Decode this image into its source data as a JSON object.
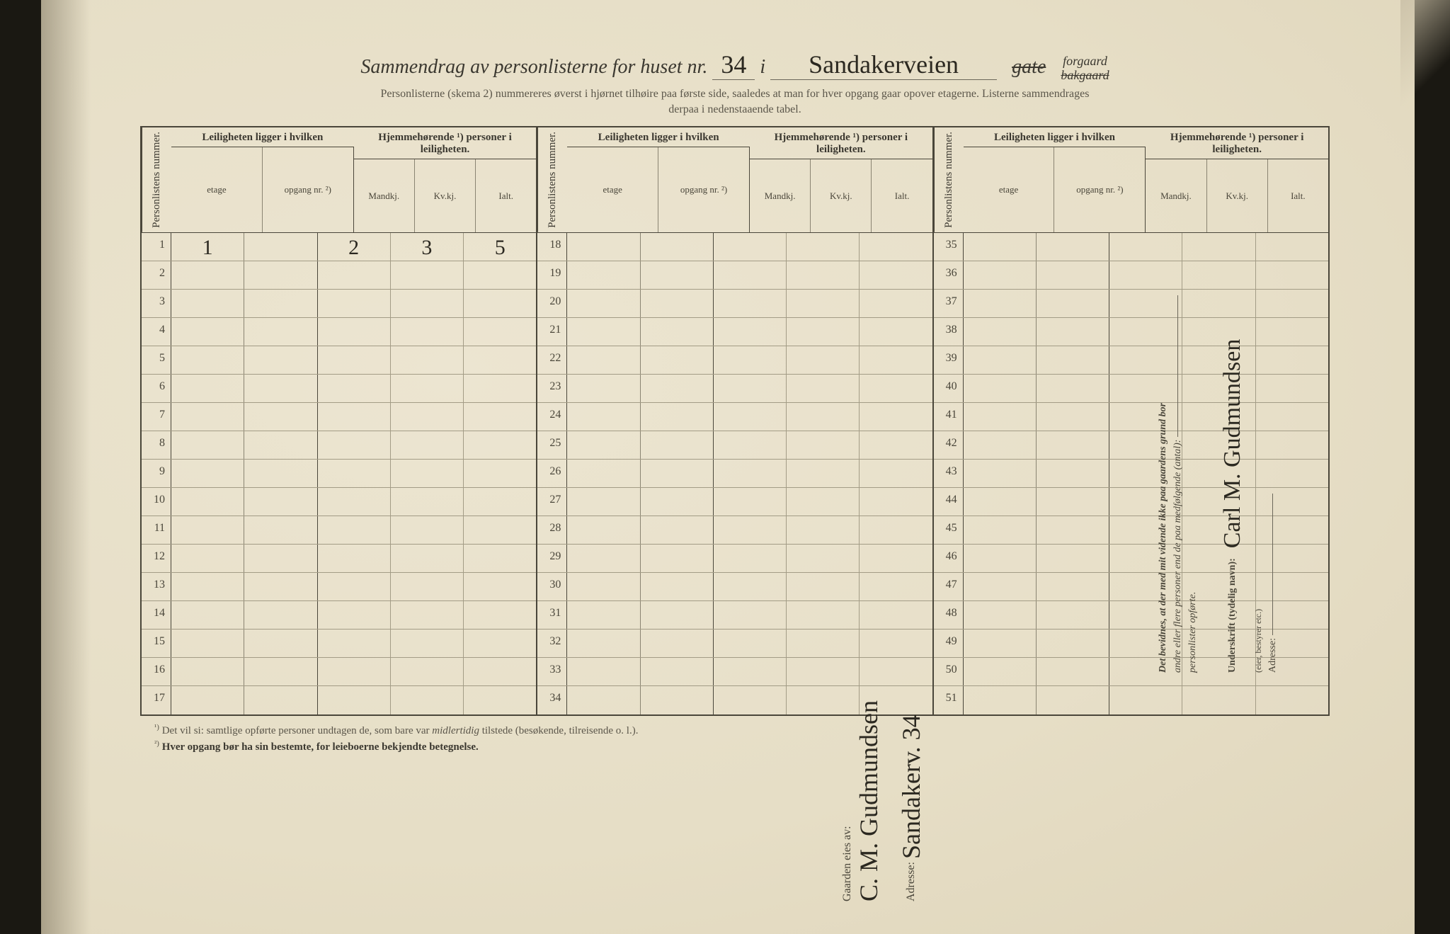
{
  "title": {
    "prefix": "Sammendrag av personlisterne for huset nr.",
    "house_nr": "34",
    "in": "i",
    "street": "Sandakerveien",
    "gate": "gate",
    "forgaard": "forgaard",
    "bakgaard": "bakgaard"
  },
  "subhead": {
    "line1": "Personlisterne (skema 2) nummereres øverst i hjørnet tilhøire paa første side, saaledes at man for hver opgang gaar opover etagerne.  Listerne sammendrages",
    "line2": "derpaa i nedenstaaende tabel."
  },
  "headers": {
    "personlistens_nummer": "Personlistens nummer.",
    "leiligheten": "Leiligheten ligger i hvilken",
    "etage": "etage",
    "opgang": "opgang nr. ²)",
    "hjemmehorende": "Hjemmehørende ¹) personer i leiligheten.",
    "mandkj": "Mandkj.",
    "kvkj": "Kv.kj.",
    "ialt": "Ialt."
  },
  "blocks": [
    {
      "rows": [
        {
          "n": "1",
          "etage": "1",
          "opgang": "",
          "m": "2",
          "k": "3",
          "i": "5"
        },
        {
          "n": "2"
        },
        {
          "n": "3"
        },
        {
          "n": "4"
        },
        {
          "n": "5"
        },
        {
          "n": "6"
        },
        {
          "n": "7"
        },
        {
          "n": "8"
        },
        {
          "n": "9"
        },
        {
          "n": "10"
        },
        {
          "n": "11"
        },
        {
          "n": "12"
        },
        {
          "n": "13"
        },
        {
          "n": "14"
        },
        {
          "n": "15"
        },
        {
          "n": "16"
        },
        {
          "n": "17"
        }
      ]
    },
    {
      "rows": [
        {
          "n": "18"
        },
        {
          "n": "19"
        },
        {
          "n": "20"
        },
        {
          "n": "21"
        },
        {
          "n": "22"
        },
        {
          "n": "23"
        },
        {
          "n": "24"
        },
        {
          "n": "25"
        },
        {
          "n": "26"
        },
        {
          "n": "27"
        },
        {
          "n": "28"
        },
        {
          "n": "29"
        },
        {
          "n": "30"
        },
        {
          "n": "31"
        },
        {
          "n": "32"
        },
        {
          "n": "33"
        },
        {
          "n": "34"
        }
      ]
    },
    {
      "rows": [
        {
          "n": "35"
        },
        {
          "n": "36"
        },
        {
          "n": "37"
        },
        {
          "n": "38"
        },
        {
          "n": "39"
        },
        {
          "n": "40"
        },
        {
          "n": "41"
        },
        {
          "n": "42"
        },
        {
          "n": "43"
        },
        {
          "n": "44"
        },
        {
          "n": "45"
        },
        {
          "n": "46"
        },
        {
          "n": "47"
        },
        {
          "n": "48"
        },
        {
          "n": "49"
        },
        {
          "n": "50"
        },
        {
          "n": "51"
        }
      ]
    }
  ],
  "footnotes": {
    "f1_sup": "¹)",
    "f1": "Det vil si: samtlige opførte personer undtagen de, som bare var midlertidig tilstede (besøkende, tilreisende o. l.).",
    "f2_sup": "²)",
    "f2": "Hver opgang bør ha sin bestemte, for leieboerne bekjendte betegnelse."
  },
  "side": {
    "bevidnes": "Det bevidnes, at der med mit vidende ikke paa gaardens grund bor",
    "andre": "andre eller flere personer end de paa medfølgende (antal):",
    "personlister": "personlister opførte.",
    "underskrift_label": "Underskrift (tydelig navn):",
    "underskrift_value": "Carl M. Gudmundsen",
    "role": "(eier, bestyrer etc.)",
    "adresse_label": "Adresse:"
  },
  "owner": {
    "label": "Gaarden eies av:",
    "name": "C. M. Gudmundsen",
    "adresse_label": "Adresse:",
    "adresse": "Sandakerv. 34"
  },
  "colors": {
    "paper": "#e8e0ca",
    "ink": "#3b3830",
    "rule": "#4a463a",
    "light_rule": "#a39c86",
    "hand": "#2b2820"
  }
}
